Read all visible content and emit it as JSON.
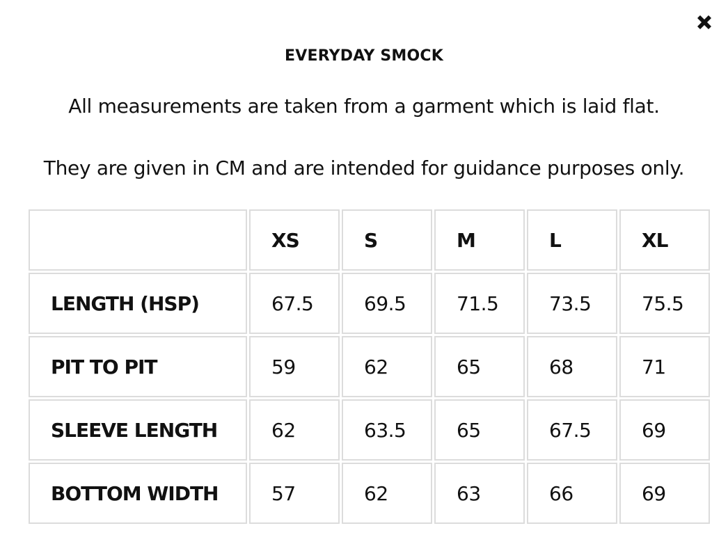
{
  "header": {
    "title": "EVERYDAY SMOCK"
  },
  "notes": [
    "All measurements are taken from a garment which is laid flat.",
    "They are given in CM and are intended for guidance purposes only."
  ],
  "table": {
    "columns": [
      "XS",
      "S",
      "M",
      "L",
      "XL"
    ],
    "rows": [
      {
        "label": "LENGTH (HSP)",
        "cells": [
          "67.5",
          "69.5",
          "71.5",
          "73.5",
          "75.5"
        ]
      },
      {
        "label": "PIT TO PIT",
        "cells": [
          "59",
          "62",
          "65",
          "68",
          "71"
        ]
      },
      {
        "label": "SLEEVE LENGTH",
        "cells": [
          "62",
          "63.5",
          "65",
          "67.5",
          "69"
        ]
      },
      {
        "label": "BOTTOM WIDTH",
        "cells": [
          "57",
          "62",
          "63",
          "66",
          "69"
        ]
      }
    ]
  }
}
